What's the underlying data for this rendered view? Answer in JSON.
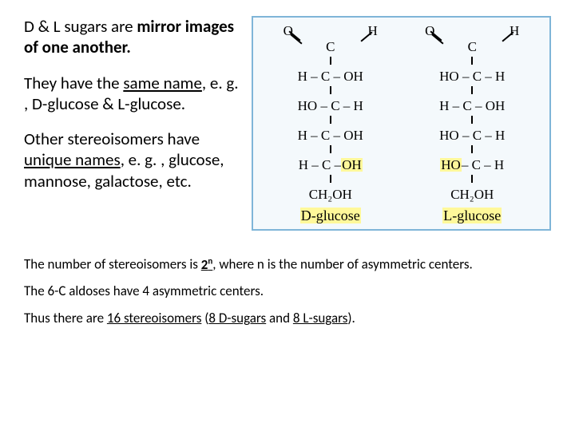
{
  "textColumn": {
    "para1_plain1": "D & L sugars are ",
    "para1_bold": "mirror images of one another.",
    "para2_plain1": "They have the ",
    "para2_underline": "same name",
    "para2_plain2": ", e. g. , D-glucose & L-glucose.",
    "para3_plain1": "Other stereoisomers have ",
    "para3_underline": "unique names",
    "para3_plain2": ", e. g. , glucose, mannose, galactose, etc."
  },
  "diagram": {
    "border_color": "#7fb5d8",
    "bg_color": "#f4f9fc",
    "highlight_color": "#fff89a",
    "d_glucose": {
      "rows": [
        "H – C – OH",
        "HO – C – H",
        "H – C – OH"
      ],
      "penultimate_left": "H – C – ",
      "penultimate_right": "OH",
      "bottom": "CH₂OH",
      "label": "D-glucose"
    },
    "l_glucose": {
      "rows": [
        "HO – C – H",
        "H – C – OH",
        "HO – C – H"
      ],
      "penultimate_left": "HO",
      "penultimate_right": " – C – H",
      "bottom": "CH₂OH",
      "label": "L-glucose"
    },
    "top_atoms": {
      "O": "O",
      "H": "H",
      "C": "C"
    }
  },
  "bottom": {
    "line1_a": "The number of stereoisomers is ",
    "line1_b": "2",
    "line1_c": "n",
    "line1_d": ", where n is the number of asymmetric centers.",
    "line2": "The 6-C aldoses have 4 asymmetric centers.",
    "line3_a": "Thus there are ",
    "line3_b": "16 stereoisomers",
    "line3_c": " (",
    "line3_d": "8 D-sugars",
    "line3_e": " and ",
    "line3_f": "8 L-sugars",
    "line3_g": ")."
  }
}
